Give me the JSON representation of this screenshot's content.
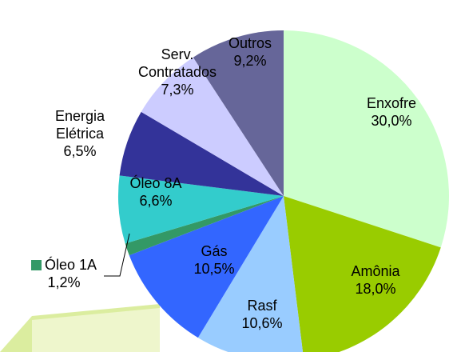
{
  "chart_data": {
    "type": "pie",
    "categories": [
      "Enxofre",
      "Amônia",
      "Rasf",
      "Gás",
      "Óleo 1A",
      "Óleo 8A",
      "Energia Elétrica",
      "Serv. Contratados",
      "Outros"
    ],
    "values": [
      30.0,
      18.0,
      10.6,
      10.5,
      1.2,
      6.6,
      6.5,
      7.3,
      9.2
    ],
    "value_labels": [
      "30,0%",
      "18,0%",
      "10,6%",
      "10,5%",
      "1,2%",
      "6,6%",
      "6,5%",
      "7,3%",
      "9,2%"
    ],
    "colors": [
      "#ccffcc",
      "#99cc00",
      "#99ccff",
      "#3366ff",
      "#339966",
      "#33cccc",
      "#333399",
      "#ccccff",
      "#666699"
    ]
  }
}
